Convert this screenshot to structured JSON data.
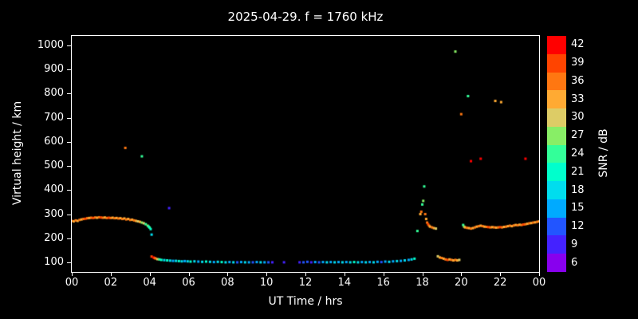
{
  "chart_data": {
    "type": "scatter",
    "title": "2025-04-29. f = 1760 kHz",
    "xlabel": "UT Time / hrs",
    "ylabel": "Virtual height / km",
    "colorbar_label": "SNR / dB",
    "xlim": [
      0,
      24
    ],
    "ylim": [
      60,
      1040
    ],
    "background": "#000000",
    "axis_color": "#FFFFFF",
    "marker_size": 3,
    "x_ticks": [
      {
        "v": 0,
        "label": "00"
      },
      {
        "v": 2,
        "label": "02"
      },
      {
        "v": 4,
        "label": "04"
      },
      {
        "v": 6,
        "label": "06"
      },
      {
        "v": 8,
        "label": "08"
      },
      {
        "v": 10,
        "label": "10"
      },
      {
        "v": 12,
        "label": "12"
      },
      {
        "v": 14,
        "label": "14"
      },
      {
        "v": 16,
        "label": "16"
      },
      {
        "v": 18,
        "label": "18"
      },
      {
        "v": 20,
        "label": "20"
      },
      {
        "v": 22,
        "label": "22"
      },
      {
        "v": 24,
        "label": "00"
      }
    ],
    "y_ticks": [
      100,
      200,
      300,
      400,
      500,
      600,
      700,
      800,
      900,
      1000
    ],
    "colorbar": {
      "min": 4.5,
      "max": 43.5,
      "ticks": [
        6,
        9,
        12,
        15,
        18,
        21,
        24,
        27,
        30,
        33,
        36,
        39,
        42
      ],
      "colors": {
        "6": "#8800EE",
        "9": "#4422FF",
        "12": "#2255FF",
        "15": "#00AAFF",
        "18": "#00DDEE",
        "21": "#00FFCC",
        "24": "#33FF99",
        "27": "#88EE66",
        "30": "#DDCC66",
        "33": "#FFAA33",
        "36": "#FF7711",
        "39": "#FF4400",
        "42": "#FF0000"
      }
    },
    "points": [
      [
        0.0,
        272,
        36
      ],
      [
        0.1,
        270,
        33
      ],
      [
        0.2,
        274,
        36
      ],
      [
        0.3,
        272,
        33
      ],
      [
        0.4,
        276,
        36
      ],
      [
        0.5,
        278,
        33
      ],
      [
        0.6,
        280,
        36
      ],
      [
        0.7,
        281,
        39
      ],
      [
        0.8,
        283,
        36
      ],
      [
        0.9,
        284,
        33
      ],
      [
        1.0,
        285,
        36
      ],
      [
        1.1,
        284,
        39
      ],
      [
        1.2,
        286,
        36
      ],
      [
        1.3,
        285,
        33
      ],
      [
        1.4,
        287,
        36
      ],
      [
        1.5,
        286,
        39
      ],
      [
        1.6,
        285,
        36
      ],
      [
        1.7,
        286,
        33
      ],
      [
        1.8,
        284,
        36
      ],
      [
        1.9,
        285,
        39
      ],
      [
        2.0,
        284,
        36
      ],
      [
        2.1,
        285,
        33
      ],
      [
        2.2,
        283,
        36
      ],
      [
        2.3,
        284,
        33
      ],
      [
        2.4,
        282,
        36
      ],
      [
        2.5,
        283,
        33
      ],
      [
        2.6,
        280,
        36
      ],
      [
        2.7,
        282,
        33
      ],
      [
        2.75,
        575,
        36
      ],
      [
        2.8,
        278,
        36
      ],
      [
        2.9,
        280,
        33
      ],
      [
        3.0,
        276,
        36
      ],
      [
        3.1,
        277,
        33
      ],
      [
        3.2,
        274,
        36
      ],
      [
        3.3,
        272,
        33
      ],
      [
        3.4,
        270,
        30
      ],
      [
        3.5,
        268,
        33
      ],
      [
        3.6,
        540,
        24
      ],
      [
        3.6,
        265,
        27
      ],
      [
        3.7,
        262,
        30
      ],
      [
        3.8,
        258,
        24
      ],
      [
        3.9,
        252,
        27
      ],
      [
        3.95,
        248,
        21
      ],
      [
        4.0,
        244,
        24
      ],
      [
        4.05,
        238,
        21
      ],
      [
        4.1,
        215,
        18
      ],
      [
        4.1,
        124,
        39
      ],
      [
        4.2,
        120,
        42
      ],
      [
        4.25,
        118,
        39
      ],
      [
        4.3,
        116,
        36
      ],
      [
        4.4,
        113,
        30
      ],
      [
        4.5,
        112,
        24
      ],
      [
        4.6,
        110,
        21
      ],
      [
        4.75,
        109,
        18
      ],
      [
        4.9,
        108,
        21
      ],
      [
        5.0,
        325,
        9
      ],
      [
        5.05,
        107,
        18
      ],
      [
        5.2,
        106,
        15
      ],
      [
        5.35,
        106,
        18
      ],
      [
        5.5,
        105,
        21
      ],
      [
        5.65,
        104,
        18
      ],
      [
        5.8,
        105,
        15
      ],
      [
        5.95,
        104,
        18
      ],
      [
        6.1,
        103,
        21
      ],
      [
        6.3,
        104,
        18
      ],
      [
        6.5,
        103,
        15
      ],
      [
        6.7,
        102,
        18
      ],
      [
        6.9,
        103,
        21
      ],
      [
        7.1,
        102,
        18
      ],
      [
        7.3,
        101,
        15
      ],
      [
        7.5,
        102,
        18
      ],
      [
        7.7,
        101,
        21
      ],
      [
        7.9,
        100,
        18
      ],
      [
        8.1,
        101,
        15
      ],
      [
        8.3,
        100,
        18
      ],
      [
        8.5,
        100,
        12
      ],
      [
        8.7,
        101,
        15
      ],
      [
        8.9,
        100,
        18
      ],
      [
        9.1,
        100,
        15
      ],
      [
        9.3,
        100,
        12
      ],
      [
        9.5,
        101,
        15
      ],
      [
        9.7,
        100,
        18
      ],
      [
        9.9,
        100,
        15
      ],
      [
        10.1,
        100,
        12
      ],
      [
        10.3,
        100,
        9
      ],
      [
        10.9,
        100,
        9
      ],
      [
        11.7,
        100,
        9
      ],
      [
        11.9,
        100,
        12
      ],
      [
        12.1,
        102,
        12
      ],
      [
        12.3,
        100,
        9
      ],
      [
        12.5,
        101,
        15
      ],
      [
        12.7,
        100,
        12
      ],
      [
        12.9,
        101,
        15
      ],
      [
        13.1,
        100,
        18
      ],
      [
        13.3,
        101,
        15
      ],
      [
        13.5,
        100,
        18
      ],
      [
        13.7,
        101,
        15
      ],
      [
        13.9,
        100,
        18
      ],
      [
        14.1,
        101,
        15
      ],
      [
        14.3,
        100,
        18
      ],
      [
        14.5,
        101,
        21
      ],
      [
        14.7,
        100,
        18
      ],
      [
        14.9,
        101,
        15
      ],
      [
        15.1,
        100,
        18
      ],
      [
        15.3,
        101,
        15
      ],
      [
        15.5,
        100,
        18
      ],
      [
        15.7,
        102,
        15
      ],
      [
        15.9,
        101,
        12
      ],
      [
        16.1,
        103,
        15
      ],
      [
        16.3,
        102,
        18
      ],
      [
        16.5,
        104,
        15
      ],
      [
        16.7,
        105,
        18
      ],
      [
        16.9,
        106,
        15
      ],
      [
        17.1,
        108,
        18
      ],
      [
        17.3,
        110,
        15
      ],
      [
        17.45,
        112,
        18
      ],
      [
        17.6,
        115,
        21
      ],
      [
        17.75,
        230,
        24
      ],
      [
        17.9,
        300,
        33
      ],
      [
        17.95,
        310,
        36
      ],
      [
        18.0,
        340,
        24
      ],
      [
        18.05,
        355,
        27
      ],
      [
        18.1,
        415,
        24
      ],
      [
        18.15,
        300,
        36
      ],
      [
        18.2,
        280,
        33
      ],
      [
        18.25,
        265,
        36
      ],
      [
        18.3,
        258,
        39
      ],
      [
        18.35,
        252,
        36
      ],
      [
        18.4,
        248,
        33
      ],
      [
        18.5,
        245,
        36
      ],
      [
        18.6,
        242,
        33
      ],
      [
        18.7,
        240,
        30
      ],
      [
        18.8,
        125,
        30
      ],
      [
        18.9,
        120,
        33
      ],
      [
        19.0,
        118,
        36
      ],
      [
        19.1,
        115,
        33
      ],
      [
        19.2,
        112,
        36
      ],
      [
        19.3,
        110,
        39
      ],
      [
        19.4,
        112,
        33
      ],
      [
        19.5,
        110,
        36
      ],
      [
        19.6,
        108,
        33
      ],
      [
        19.7,
        110,
        36
      ],
      [
        19.7,
        975,
        27
      ],
      [
        19.8,
        108,
        33
      ],
      [
        19.9,
        110,
        30
      ],
      [
        20.0,
        715,
        36
      ],
      [
        20.35,
        790,
        24
      ],
      [
        20.5,
        520,
        42
      ],
      [
        21.0,
        530,
        42
      ],
      [
        21.75,
        770,
        33
      ],
      [
        22.05,
        765,
        33
      ],
      [
        23.3,
        530,
        42
      ],
      [
        20.1,
        255,
        24
      ],
      [
        20.15,
        248,
        27
      ],
      [
        20.2,
        245,
        33
      ],
      [
        20.3,
        243,
        36
      ],
      [
        20.4,
        242,
        33
      ],
      [
        20.5,
        240,
        36
      ],
      [
        20.6,
        242,
        33
      ],
      [
        20.7,
        245,
        36
      ],
      [
        20.8,
        248,
        33
      ],
      [
        20.9,
        250,
        36
      ],
      [
        21.0,
        252,
        33
      ],
      [
        21.1,
        250,
        36
      ],
      [
        21.2,
        248,
        33
      ],
      [
        21.3,
        247,
        36
      ],
      [
        21.4,
        246,
        39
      ],
      [
        21.5,
        245,
        36
      ],
      [
        21.6,
        246,
        33
      ],
      [
        21.7,
        245,
        36
      ],
      [
        21.8,
        244,
        33
      ],
      [
        21.9,
        245,
        36
      ],
      [
        22.0,
        246,
        39
      ],
      [
        22.1,
        245,
        36
      ],
      [
        22.2,
        247,
        33
      ],
      [
        22.3,
        248,
        36
      ],
      [
        22.4,
        250,
        33
      ],
      [
        22.5,
        252,
        36
      ],
      [
        22.6,
        250,
        33
      ],
      [
        22.7,
        253,
        36
      ],
      [
        22.8,
        255,
        33
      ],
      [
        22.9,
        254,
        36
      ],
      [
        23.0,
        256,
        33
      ],
      [
        23.1,
        255,
        36
      ],
      [
        23.2,
        257,
        39
      ],
      [
        23.3,
        258,
        36
      ],
      [
        23.4,
        260,
        33
      ],
      [
        23.5,
        262,
        36
      ],
      [
        23.6,
        263,
        33
      ],
      [
        23.7,
        265,
        36
      ],
      [
        23.8,
        266,
        33
      ],
      [
        23.9,
        268,
        36
      ],
      [
        24.0,
        270,
        33
      ]
    ]
  }
}
